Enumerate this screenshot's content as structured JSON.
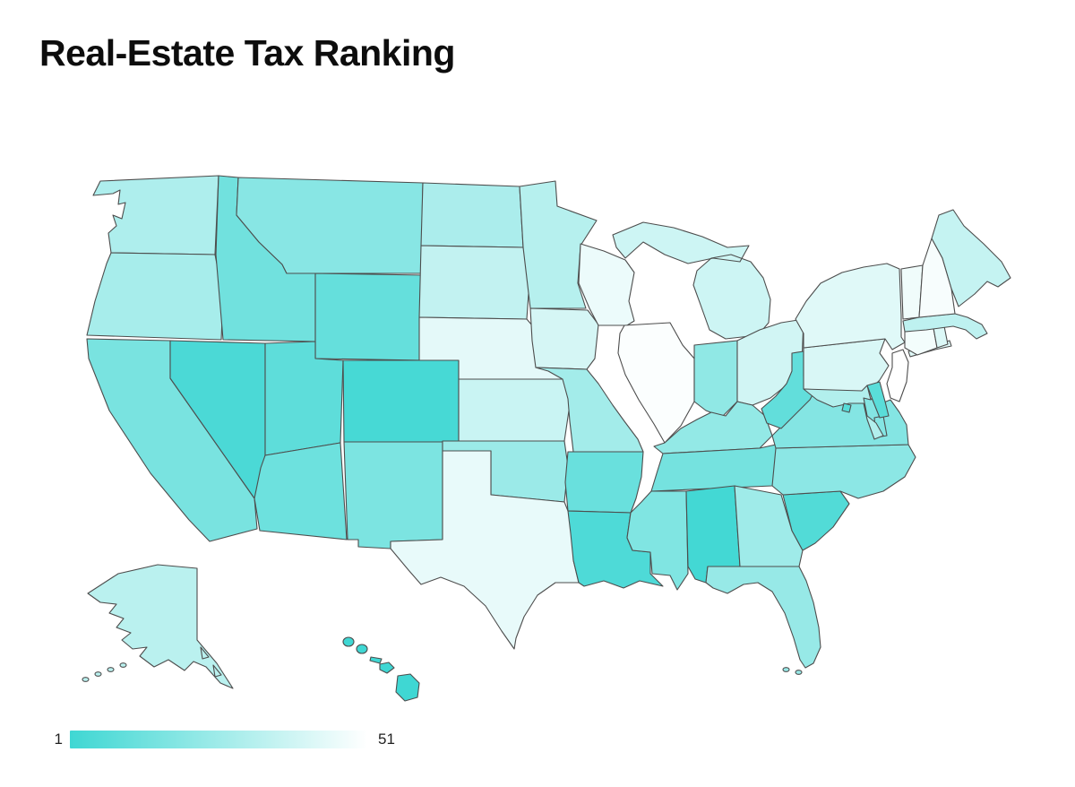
{
  "title": "Real-Estate Tax Ranking",
  "legend": {
    "min_label": "1",
    "max_label": "51"
  },
  "chart_data": {
    "type": "choropleth",
    "title": "Real-Estate Tax Ranking",
    "region": "USA states",
    "metric": "real-estate tax rank (1 = lowest, 51 = highest)",
    "scale": {
      "min": 1,
      "max": 51,
      "min_color": "#3FD7D3",
      "max_color": "#FFFFFF",
      "border_color": "#4d4d4d",
      "legend_position": "bottom-left"
    },
    "states": [
      {
        "abbr": "WA",
        "name": "Washington",
        "rank": 30
      },
      {
        "abbr": "OR",
        "name": "Oregon",
        "rank": 28
      },
      {
        "abbr": "CA",
        "name": "California",
        "rank": 16
      },
      {
        "abbr": "NV",
        "name": "Nevada",
        "rank": 4
      },
      {
        "abbr": "ID",
        "name": "Idaho",
        "rank": 14
      },
      {
        "abbr": "MT",
        "name": "Montana",
        "rank": 20
      },
      {
        "abbr": "WY",
        "name": "Wyoming",
        "rank": 11
      },
      {
        "abbr": "UT",
        "name": "Utah",
        "rank": 9
      },
      {
        "abbr": "CO",
        "name": "Colorado",
        "rank": 3
      },
      {
        "abbr": "AZ",
        "name": "Arizona",
        "rank": 13
      },
      {
        "abbr": "NM",
        "name": "New Mexico",
        "rank": 17
      },
      {
        "abbr": "ND",
        "name": "North Dakota",
        "rank": 29
      },
      {
        "abbr": "SD",
        "name": "South Dakota",
        "rank": 35
      },
      {
        "abbr": "NE",
        "name": "Nebraska",
        "rank": 44
      },
      {
        "abbr": "KS",
        "name": "Kansas",
        "rank": 37
      },
      {
        "abbr": "OK",
        "name": "Oklahoma",
        "rank": 25
      },
      {
        "abbr": "TX",
        "name": "Texas",
        "rank": 45
      },
      {
        "abbr": "MN",
        "name": "Minnesota",
        "rank": 32
      },
      {
        "abbr": "IA",
        "name": "Iowa",
        "rank": 40
      },
      {
        "abbr": "MO",
        "name": "Missouri",
        "rank": 27
      },
      {
        "abbr": "AR",
        "name": "Arkansas",
        "rank": 12
      },
      {
        "abbr": "LA",
        "name": "Louisiana",
        "rank": 5
      },
      {
        "abbr": "WI",
        "name": "Wisconsin",
        "rank": 46
      },
      {
        "abbr": "IL",
        "name": "Illinois",
        "rank": 50
      },
      {
        "abbr": "MI",
        "name": "Michigan",
        "rank": 38
      },
      {
        "abbr": "IN",
        "name": "Indiana",
        "rank": 22
      },
      {
        "abbr": "OH",
        "name": "Ohio",
        "rank": 39
      },
      {
        "abbr": "KY",
        "name": "Kentucky",
        "rank": 23
      },
      {
        "abbr": "TN",
        "name": "Tennessee",
        "rank": 15
      },
      {
        "abbr": "MS",
        "name": "Mississippi",
        "rank": 18
      },
      {
        "abbr": "AL",
        "name": "Alabama",
        "rank": 2
      },
      {
        "abbr": "GA",
        "name": "Georgia",
        "rank": 26
      },
      {
        "abbr": "FL",
        "name": "Florida",
        "rank": 24
      },
      {
        "abbr": "SC",
        "name": "South Carolina",
        "rank": 6
      },
      {
        "abbr": "NC",
        "name": "North Carolina",
        "rank": 21
      },
      {
        "abbr": "VA",
        "name": "Virginia",
        "rank": 19
      },
      {
        "abbr": "WV",
        "name": "West Virginia",
        "rank": 10
      },
      {
        "abbr": "PA",
        "name": "Pennsylvania",
        "rank": 41
      },
      {
        "abbr": "NY",
        "name": "New York",
        "rank": 43
      },
      {
        "abbr": "MD",
        "name": "Maryland",
        "rank": 31
      },
      {
        "abbr": "DE",
        "name": "Delaware",
        "rank": 8
      },
      {
        "abbr": "DC",
        "name": "District of Columbia",
        "rank": 7
      },
      {
        "abbr": "NJ",
        "name": "New Jersey",
        "rank": 51
      },
      {
        "abbr": "CT",
        "name": "Connecticut",
        "rank": 48
      },
      {
        "abbr": "RI",
        "name": "Rhode Island",
        "rank": 42
      },
      {
        "abbr": "MA",
        "name": "Massachusetts",
        "rank": 34
      },
      {
        "abbr": "VT",
        "name": "Vermont",
        "rank": 47
      },
      {
        "abbr": "NH",
        "name": "New Hampshire",
        "rank": 49
      },
      {
        "abbr": "ME",
        "name": "Maine",
        "rank": 36
      },
      {
        "abbr": "AK",
        "name": "Alaska",
        "rank": 33
      },
      {
        "abbr": "HI",
        "name": "Hawaii",
        "rank": 1
      }
    ]
  }
}
